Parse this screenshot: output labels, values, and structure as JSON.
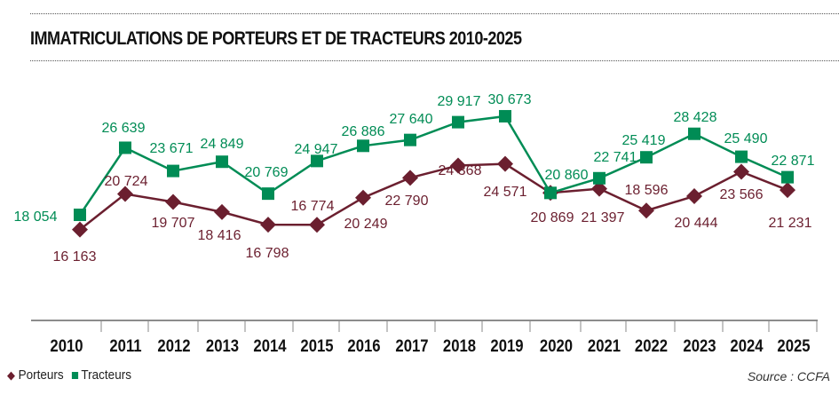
{
  "chart_data": {
    "type": "line",
    "title": "IMMATRICULATIONS DE PORTEURS ET DE TRACTEURS 2010-2025",
    "xlabel": "",
    "ylabel": "",
    "categories": [
      "2010",
      "2011",
      "2012",
      "2013",
      "2014",
      "2015",
      "2016",
      "2017",
      "2018",
      "2019",
      "2020",
      "2021",
      "2022",
      "2023",
      "2024",
      "2025"
    ],
    "series": [
      {
        "name": "Porteurs",
        "color": "#6b1f2f",
        "marker": "diamond",
        "values": [
          16163,
          20724,
          19707,
          18416,
          16798,
          16774,
          20249,
          22790,
          24368,
          24571,
          20869,
          21397,
          18596,
          20444,
          23566,
          21231
        ],
        "labels": [
          "16 163",
          "20 724",
          "19 707",
          "18 416",
          "16 798",
          "16 774",
          "20 249",
          "22 790",
          "24 368",
          "24 571",
          "20 869",
          "21 397",
          "18 596",
          "20 444",
          "23 566",
          "21 231"
        ]
      },
      {
        "name": "Tracteurs",
        "color": "#008c55",
        "marker": "square",
        "values": [
          18054,
          26639,
          23671,
          24849,
          20769,
          24947,
          26886,
          27640,
          29917,
          30673,
          20860,
          22741,
          25419,
          28428,
          25490,
          22871
        ],
        "labels": [
          "18 054",
          "26 639",
          "23 671",
          "24 849",
          "20 769",
          "24 947",
          "26 886",
          "27 640",
          "29 917",
          "30 673",
          "20 860",
          "22 741",
          "25 419",
          "28 428",
          "25 490",
          "22 871"
        ]
      }
    ],
    "ylim": [
      4650,
      37600
    ],
    "grid": false,
    "legend_position": "bottom-left"
  },
  "legend": {
    "porteurs": "Porteurs",
    "tracteurs": "Tracteurs"
  },
  "source": "Source : CCFA"
}
